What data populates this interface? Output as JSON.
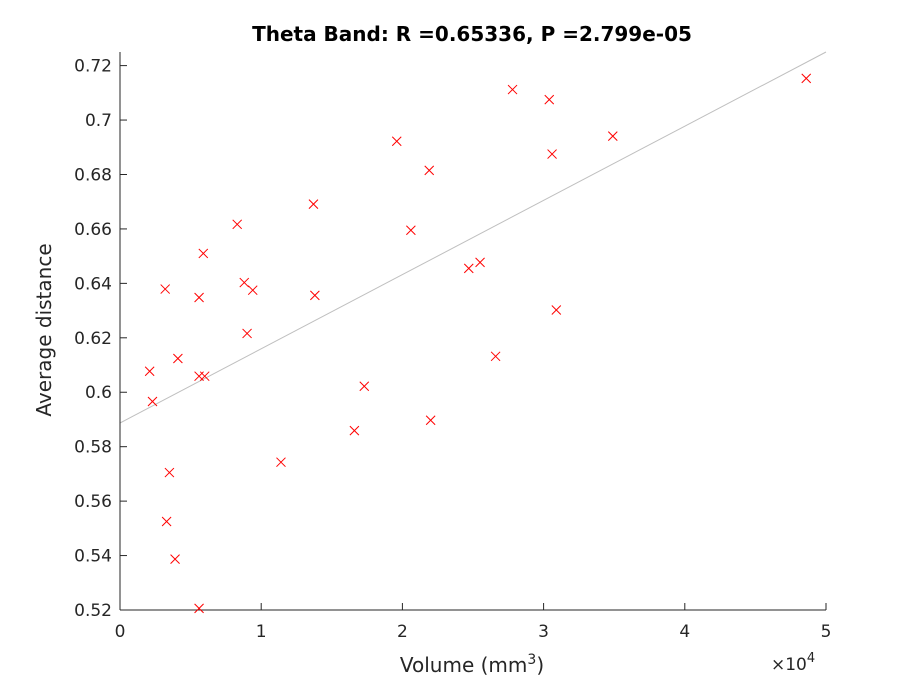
{
  "chart_data": {
    "type": "scatter",
    "title": "Theta Band: R =0.65336, P =2.799e-05",
    "xlabel": "Volume (mm",
    "xlabel_sup": "3",
    "xlabel_close": ")",
    "ylabel": "Average distance",
    "exponent_base": "×10",
    "exponent_power": "4",
    "xlim": [
      0,
      50000
    ],
    "ylim": [
      0.52,
      0.725
    ],
    "x_ticks": [
      0,
      10000,
      20000,
      30000,
      40000,
      50000
    ],
    "x_tick_labels": [
      "0",
      "1",
      "2",
      "3",
      "4",
      "5"
    ],
    "y_ticks": [
      0.52,
      0.54,
      0.56,
      0.58,
      0.6,
      0.62,
      0.64,
      0.66,
      0.68,
      0.7,
      0.72
    ],
    "y_tick_labels": [
      "0.52",
      "0.54",
      "0.56",
      "0.58",
      "0.6",
      "0.62",
      "0.64",
      "0.66",
      "0.68",
      "0.7",
      "0.72"
    ],
    "grid": false,
    "marker": "x",
    "marker_color": "#ff0000",
    "fit_line_color": "#bfbfbf",
    "fit_line": {
      "x": [
        0,
        50000
      ],
      "y": [
        0.5887,
        0.725
      ]
    },
    "points": [
      {
        "x": 2100,
        "y": 0.6077
      },
      {
        "x": 2300,
        "y": 0.5966
      },
      {
        "x": 3200,
        "y": 0.6379
      },
      {
        "x": 3300,
        "y": 0.5525
      },
      {
        "x": 3500,
        "y": 0.5705
      },
      {
        "x": 3900,
        "y": 0.5387
      },
      {
        "x": 4100,
        "y": 0.6124
      },
      {
        "x": 5600,
        "y": 0.6348
      },
      {
        "x": 5600,
        "y": 0.6059
      },
      {
        "x": 5600,
        "y": 0.5206
      },
      {
        "x": 5900,
        "y": 0.651
      },
      {
        "x": 6000,
        "y": 0.6059
      },
      {
        "x": 8300,
        "y": 0.6617
      },
      {
        "x": 8800,
        "y": 0.6403
      },
      {
        "x": 9000,
        "y": 0.6216
      },
      {
        "x": 9400,
        "y": 0.6375
      },
      {
        "x": 11400,
        "y": 0.5743
      },
      {
        "x": 13700,
        "y": 0.6691
      },
      {
        "x": 13800,
        "y": 0.6356
      },
      {
        "x": 16600,
        "y": 0.5859
      },
      {
        "x": 17300,
        "y": 0.6022
      },
      {
        "x": 19600,
        "y": 0.6922
      },
      {
        "x": 20600,
        "y": 0.6595
      },
      {
        "x": 21900,
        "y": 0.6815
      },
      {
        "x": 22000,
        "y": 0.5897
      },
      {
        "x": 24700,
        "y": 0.6455
      },
      {
        "x": 25500,
        "y": 0.6477
      },
      {
        "x": 26600,
        "y": 0.6132
      },
      {
        "x": 27800,
        "y": 0.7112
      },
      {
        "x": 30400,
        "y": 0.7075
      },
      {
        "x": 30600,
        "y": 0.6875
      },
      {
        "x": 30900,
        "y": 0.6302
      },
      {
        "x": 34900,
        "y": 0.6941
      },
      {
        "x": 48600,
        "y": 0.7153
      }
    ]
  }
}
